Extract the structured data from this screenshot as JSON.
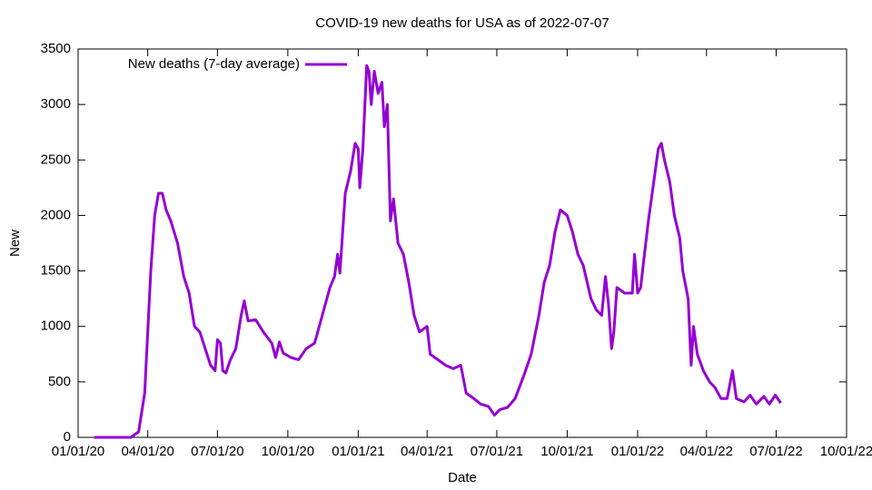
{
  "chart_data": {
    "type": "line",
    "title": "COVID-19 new deaths for USA as of 2022-07-07",
    "x_label": "Date",
    "y_label": "New",
    "legend": "top-left",
    "xlim": [
      "2020-01-01",
      "2022-10-01"
    ],
    "xticks": [
      {
        "value": "2020-01-01",
        "label": "01/01/20"
      },
      {
        "value": "2020-04-01",
        "label": "04/01/20"
      },
      {
        "value": "2020-07-01",
        "label": "07/01/20"
      },
      {
        "value": "2020-10-01",
        "label": "10/01/20"
      },
      {
        "value": "2021-01-01",
        "label": "01/01/21"
      },
      {
        "value": "2021-04-01",
        "label": "04/01/21"
      },
      {
        "value": "2021-07-01",
        "label": "07/01/21"
      },
      {
        "value": "2021-10-01",
        "label": "10/01/21"
      },
      {
        "value": "2022-01-01",
        "label": "01/01/22"
      },
      {
        "value": "2022-04-01",
        "label": "04/01/22"
      },
      {
        "value": "2022-07-01",
        "label": "07/01/22"
      },
      {
        "value": "2022-10-01",
        "label": "10/01/22"
      }
    ],
    "ylim": [
      0,
      3500
    ],
    "yticks": [
      0,
      500,
      1000,
      1500,
      2000,
      2500,
      3000,
      3500
    ],
    "x": [
      "2020-01-22",
      "2020-03-10",
      "2020-03-20",
      "2020-03-28",
      "2020-04-05",
      "2020-04-10",
      "2020-04-15",
      "2020-04-20",
      "2020-04-25",
      "2020-05-01",
      "2020-05-10",
      "2020-05-18",
      "2020-05-25",
      "2020-06-01",
      "2020-06-08",
      "2020-06-15",
      "2020-06-22",
      "2020-06-28",
      "2020-07-01",
      "2020-07-05",
      "2020-07-08",
      "2020-07-12",
      "2020-07-18",
      "2020-07-25",
      "2020-08-01",
      "2020-08-05",
      "2020-08-10",
      "2020-08-20",
      "2020-08-30",
      "2020-09-10",
      "2020-09-15",
      "2020-09-20",
      "2020-09-25",
      "2020-10-05",
      "2020-10-15",
      "2020-10-25",
      "2020-11-05",
      "2020-11-15",
      "2020-11-25",
      "2020-12-01",
      "2020-12-05",
      "2020-12-08",
      "2020-12-15",
      "2020-12-22",
      "2020-12-28",
      "2021-01-01",
      "2021-01-03",
      "2021-01-07",
      "2021-01-12",
      "2021-01-15",
      "2021-01-18",
      "2021-01-22",
      "2021-01-27",
      "2021-02-01",
      "2021-02-04",
      "2021-02-08",
      "2021-02-12",
      "2021-02-16",
      "2021-02-22",
      "2021-03-01",
      "2021-03-08",
      "2021-03-15",
      "2021-03-22",
      "2021-04-01",
      "2021-04-05",
      "2021-04-15",
      "2021-04-25",
      "2021-05-05",
      "2021-05-15",
      "2021-05-22",
      "2021-06-01",
      "2021-06-10",
      "2021-06-20",
      "2021-06-28",
      "2021-07-05",
      "2021-07-15",
      "2021-07-25",
      "2021-08-05",
      "2021-08-15",
      "2021-08-25",
      "2021-09-01",
      "2021-09-08",
      "2021-09-15",
      "2021-09-22",
      "2021-10-01",
      "2021-10-08",
      "2021-10-15",
      "2021-10-22",
      "2021-11-01",
      "2021-11-08",
      "2021-11-15",
      "2021-11-20",
      "2021-11-24",
      "2021-11-28",
      "2021-12-01",
      "2021-12-05",
      "2021-12-15",
      "2021-12-25",
      "2021-12-28",
      "2022-01-01",
      "2022-01-05",
      "2022-01-10",
      "2022-01-15",
      "2022-01-22",
      "2022-01-28",
      "2022-02-01",
      "2022-02-05",
      "2022-02-12",
      "2022-02-18",
      "2022-02-25",
      "2022-03-01",
      "2022-03-08",
      "2022-03-12",
      "2022-03-15",
      "2022-03-20",
      "2022-03-28",
      "2022-04-05",
      "2022-04-12",
      "2022-04-20",
      "2022-04-28",
      "2022-05-05",
      "2022-05-10",
      "2022-05-20",
      "2022-05-28",
      "2022-06-05",
      "2022-06-15",
      "2022-06-22",
      "2022-06-30",
      "2022-07-07"
    ],
    "series": [
      {
        "name": "New deaths (7-day average)",
        "color": "#9400d3",
        "values": [
          0,
          0,
          50,
          400,
          1500,
          2000,
          2200,
          2200,
          2050,
          1950,
          1750,
          1450,
          1300,
          1000,
          950,
          800,
          650,
          600,
          880,
          850,
          600,
          580,
          700,
          800,
          1100,
          1230,
          1050,
          1060,
          950,
          850,
          720,
          860,
          760,
          720,
          700,
          800,
          850,
          1100,
          1350,
          1450,
          1650,
          1480,
          2200,
          2400,
          2650,
          2600,
          2250,
          2600,
          3350,
          3300,
          3000,
          3300,
          3100,
          3200,
          2800,
          3000,
          1950,
          2150,
          1750,
          1650,
          1400,
          1100,
          950,
          1000,
          750,
          700,
          650,
          620,
          650,
          400,
          350,
          300,
          280,
          200,
          250,
          270,
          350,
          550,
          750,
          1100,
          1400,
          1550,
          1850,
          2050,
          2000,
          1850,
          1650,
          1550,
          1250,
          1150,
          1100,
          1450,
          1200,
          800,
          950,
          1350,
          1300,
          1300,
          1650,
          1300,
          1350,
          1650,
          1950,
          2300,
          2600,
          2650,
          2500,
          2300,
          2000,
          1800,
          1500,
          1250,
          650,
          1000,
          750,
          600,
          500,
          450,
          350,
          350,
          600,
          350,
          320,
          380,
          300,
          370,
          300,
          380,
          310
        ]
      }
    ]
  }
}
